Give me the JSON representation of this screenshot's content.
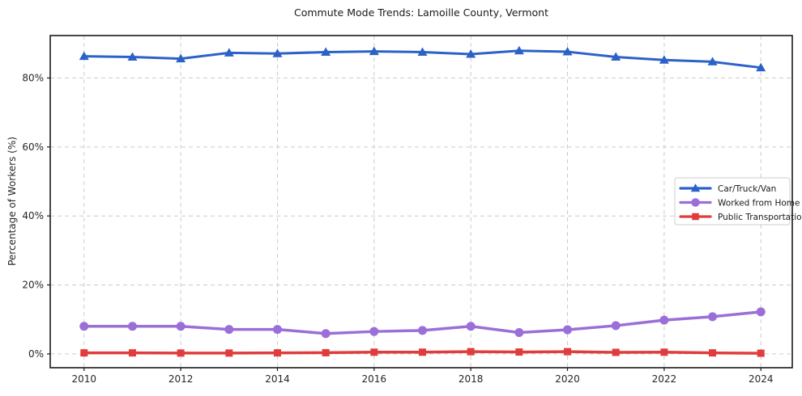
{
  "figure": {
    "title": "Commute Mode Trends: Lamoille County, Vermont",
    "ylabel": "Percentage of Workers (%)"
  },
  "chart_data": {
    "type": "line",
    "title": "Commute Mode Trends: Lamoille County, Vermont",
    "xlabel": "",
    "ylabel": "Percentage of Workers (%)",
    "x": [
      2010,
      2011,
      2012,
      2013,
      2014,
      2015,
      2016,
      2017,
      2018,
      2019,
      2020,
      2021,
      2022,
      2023,
      2024
    ],
    "xtick_labels": [
      "2010",
      "2012",
      "2014",
      "2016",
      "2018",
      "2020",
      "2022",
      "2024"
    ],
    "xtick_values": [
      2010,
      2012,
      2014,
      2016,
      2018,
      2020,
      2022,
      2024
    ],
    "ytick_labels": [
      "0%",
      "20%",
      "40%",
      "60%",
      "80%"
    ],
    "ytick_values": [
      0,
      20,
      40,
      60,
      80
    ],
    "xlim": [
      2009.3,
      2024.65
    ],
    "ylim": [
      -4,
      92.3
    ],
    "grid": true,
    "grid_style": "dashed",
    "legend_position": "center-right",
    "series": [
      {
        "name": "Car/Truck/Van",
        "color": "#2B62C9",
        "marker": "triangle",
        "line_width": 3,
        "values": [
          86.3,
          86.1,
          85.6,
          87.3,
          87.1,
          87.5,
          87.7,
          87.5,
          86.9,
          87.9,
          87.6,
          86.1,
          85.2,
          84.7,
          83.0
        ]
      },
      {
        "name": "Worked from Home",
        "color": "#9A6FD7",
        "marker": "circle",
        "line_width": 3.5,
        "values": [
          8.0,
          8.0,
          8.0,
          7.1,
          7.1,
          5.9,
          6.5,
          6.8,
          8.0,
          6.2,
          7.0,
          8.2,
          9.8,
          10.8,
          12.2
        ]
      },
      {
        "name": "Public Transportation",
        "color": "#E13C3C",
        "marker": "square",
        "line_width": 3.5,
        "values": [
          0.3,
          0.3,
          0.25,
          0.25,
          0.3,
          0.35,
          0.5,
          0.5,
          0.65,
          0.55,
          0.65,
          0.45,
          0.5,
          0.3,
          0.2
        ]
      }
    ]
  },
  "colors": {
    "plot_border": "#1a1a1a",
    "grid": "#cccccc",
    "tick_text": "#262626",
    "legend_border": "#cccccc",
    "legend_bg": "#ffffff",
    "background": "#ffffff"
  }
}
